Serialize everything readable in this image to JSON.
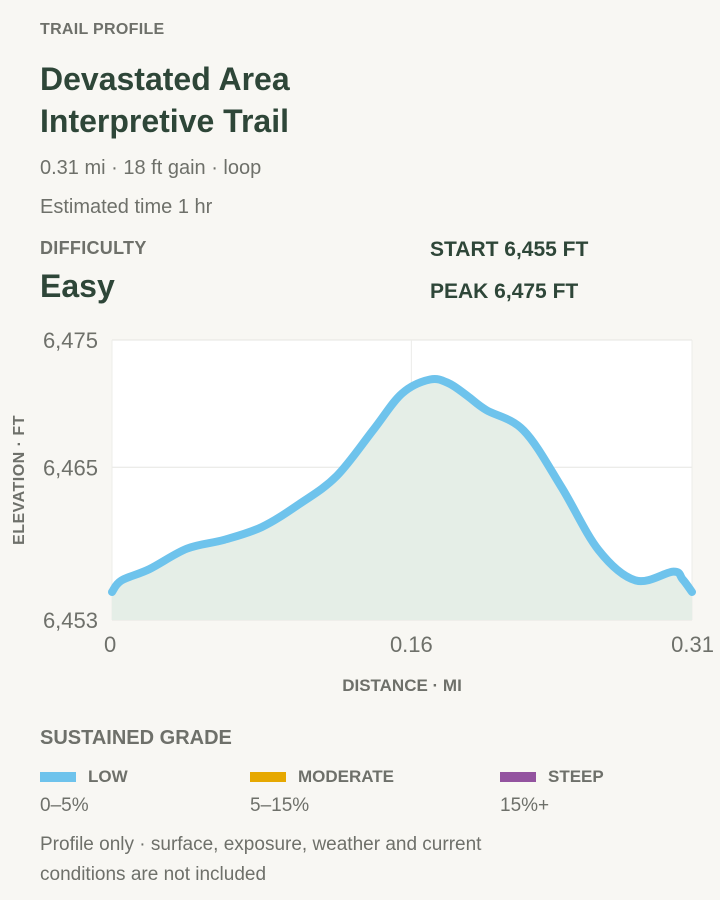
{
  "header": {
    "eyebrow": "TRAIL PROFILE",
    "title_line1": "Devastated Area",
    "title_line2": "Interpretive Trail",
    "meta_line": "0.31 mi · 18 ft gain · loop",
    "time_line": "Estimated time 1 hr"
  },
  "difficulty": {
    "label": "DIFFICULTY",
    "value": "Easy"
  },
  "stats": {
    "start": "START 6,455 FT",
    "peak": "PEAK 6,475 FT"
  },
  "chart_data": {
    "type": "area",
    "title": "",
    "xlabel": "DISTANCE · MI",
    "ylabel": "ELEVATION · FT",
    "xlim": [
      0,
      0.31
    ],
    "ylim": [
      6453,
      6475
    ],
    "x_ticks": [
      0,
      0.16,
      0.31
    ],
    "x_tick_labels": [
      "0",
      "0.16",
      "0.31"
    ],
    "y_ticks": [
      6453,
      6465,
      6475
    ],
    "y_tick_labels": [
      "6,453",
      "6,465",
      "6,475"
    ],
    "grid": true,
    "line_color": "#6ec3ec",
    "fill_color": "#e5eee7",
    "x": [
      0,
      0.005,
      0.02,
      0.04,
      0.06,
      0.08,
      0.1,
      0.12,
      0.14,
      0.155,
      0.17,
      0.18,
      0.19,
      0.2,
      0.22,
      0.24,
      0.26,
      0.28,
      0.3,
      0.305,
      0.31
    ],
    "y": [
      6455.2,
      6456.1,
      6457.0,
      6458.6,
      6459.3,
      6460.3,
      6462.1,
      6464.3,
      6468.0,
      6470.8,
      6471.9,
      6471.6,
      6470.6,
      6469.5,
      6467.9,
      6463.5,
      6458.5,
      6456.1,
      6456.8,
      6456.2,
      6455.2
    ]
  },
  "grade": {
    "title": "SUSTAINED GRADE",
    "items": [
      {
        "label": "LOW",
        "range": "0–5%",
        "color": "#6ec3ec"
      },
      {
        "label": "MODERATE",
        "range": "5–15%",
        "color": "#e6a800"
      },
      {
        "label": "STEEP",
        "range": "15%+",
        "color": "#93539f"
      }
    ]
  },
  "note": "Profile only · surface, exposure, weather and current conditions are not included"
}
